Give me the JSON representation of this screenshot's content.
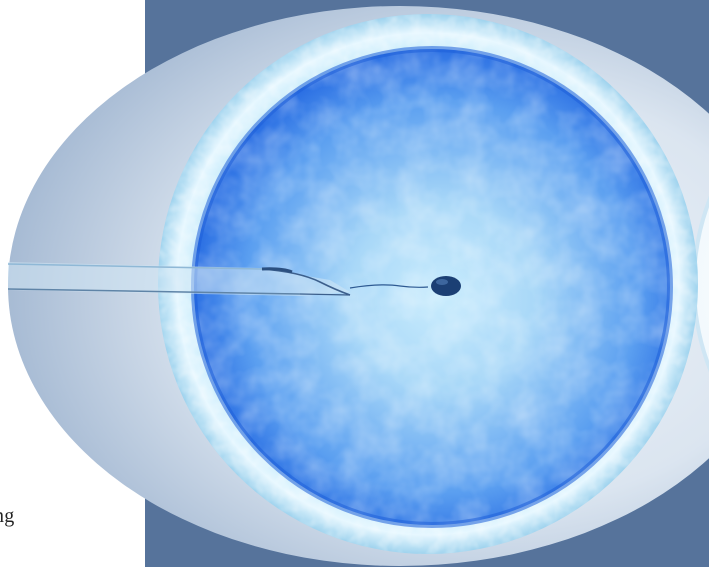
{
  "image": {
    "subject": "icsi-egg-illustration",
    "icons": [
      "oocyte-icon",
      "micropipette-icon",
      "sperm-icon"
    ]
  },
  "colors": {
    "navy_block": "#56739b",
    "oval_light": "#dbe5f0",
    "oval_shadow": "#a7bbd4",
    "zona_light": "#e6f7ff",
    "zona_mid": "#9fd3ee",
    "cytoplasm_center": "#a9d8f8",
    "cytoplasm_edge": "#1f63e0",
    "sperm_head": "#1b3f74"
  },
  "caption": {
    "fragment": "ng"
  }
}
